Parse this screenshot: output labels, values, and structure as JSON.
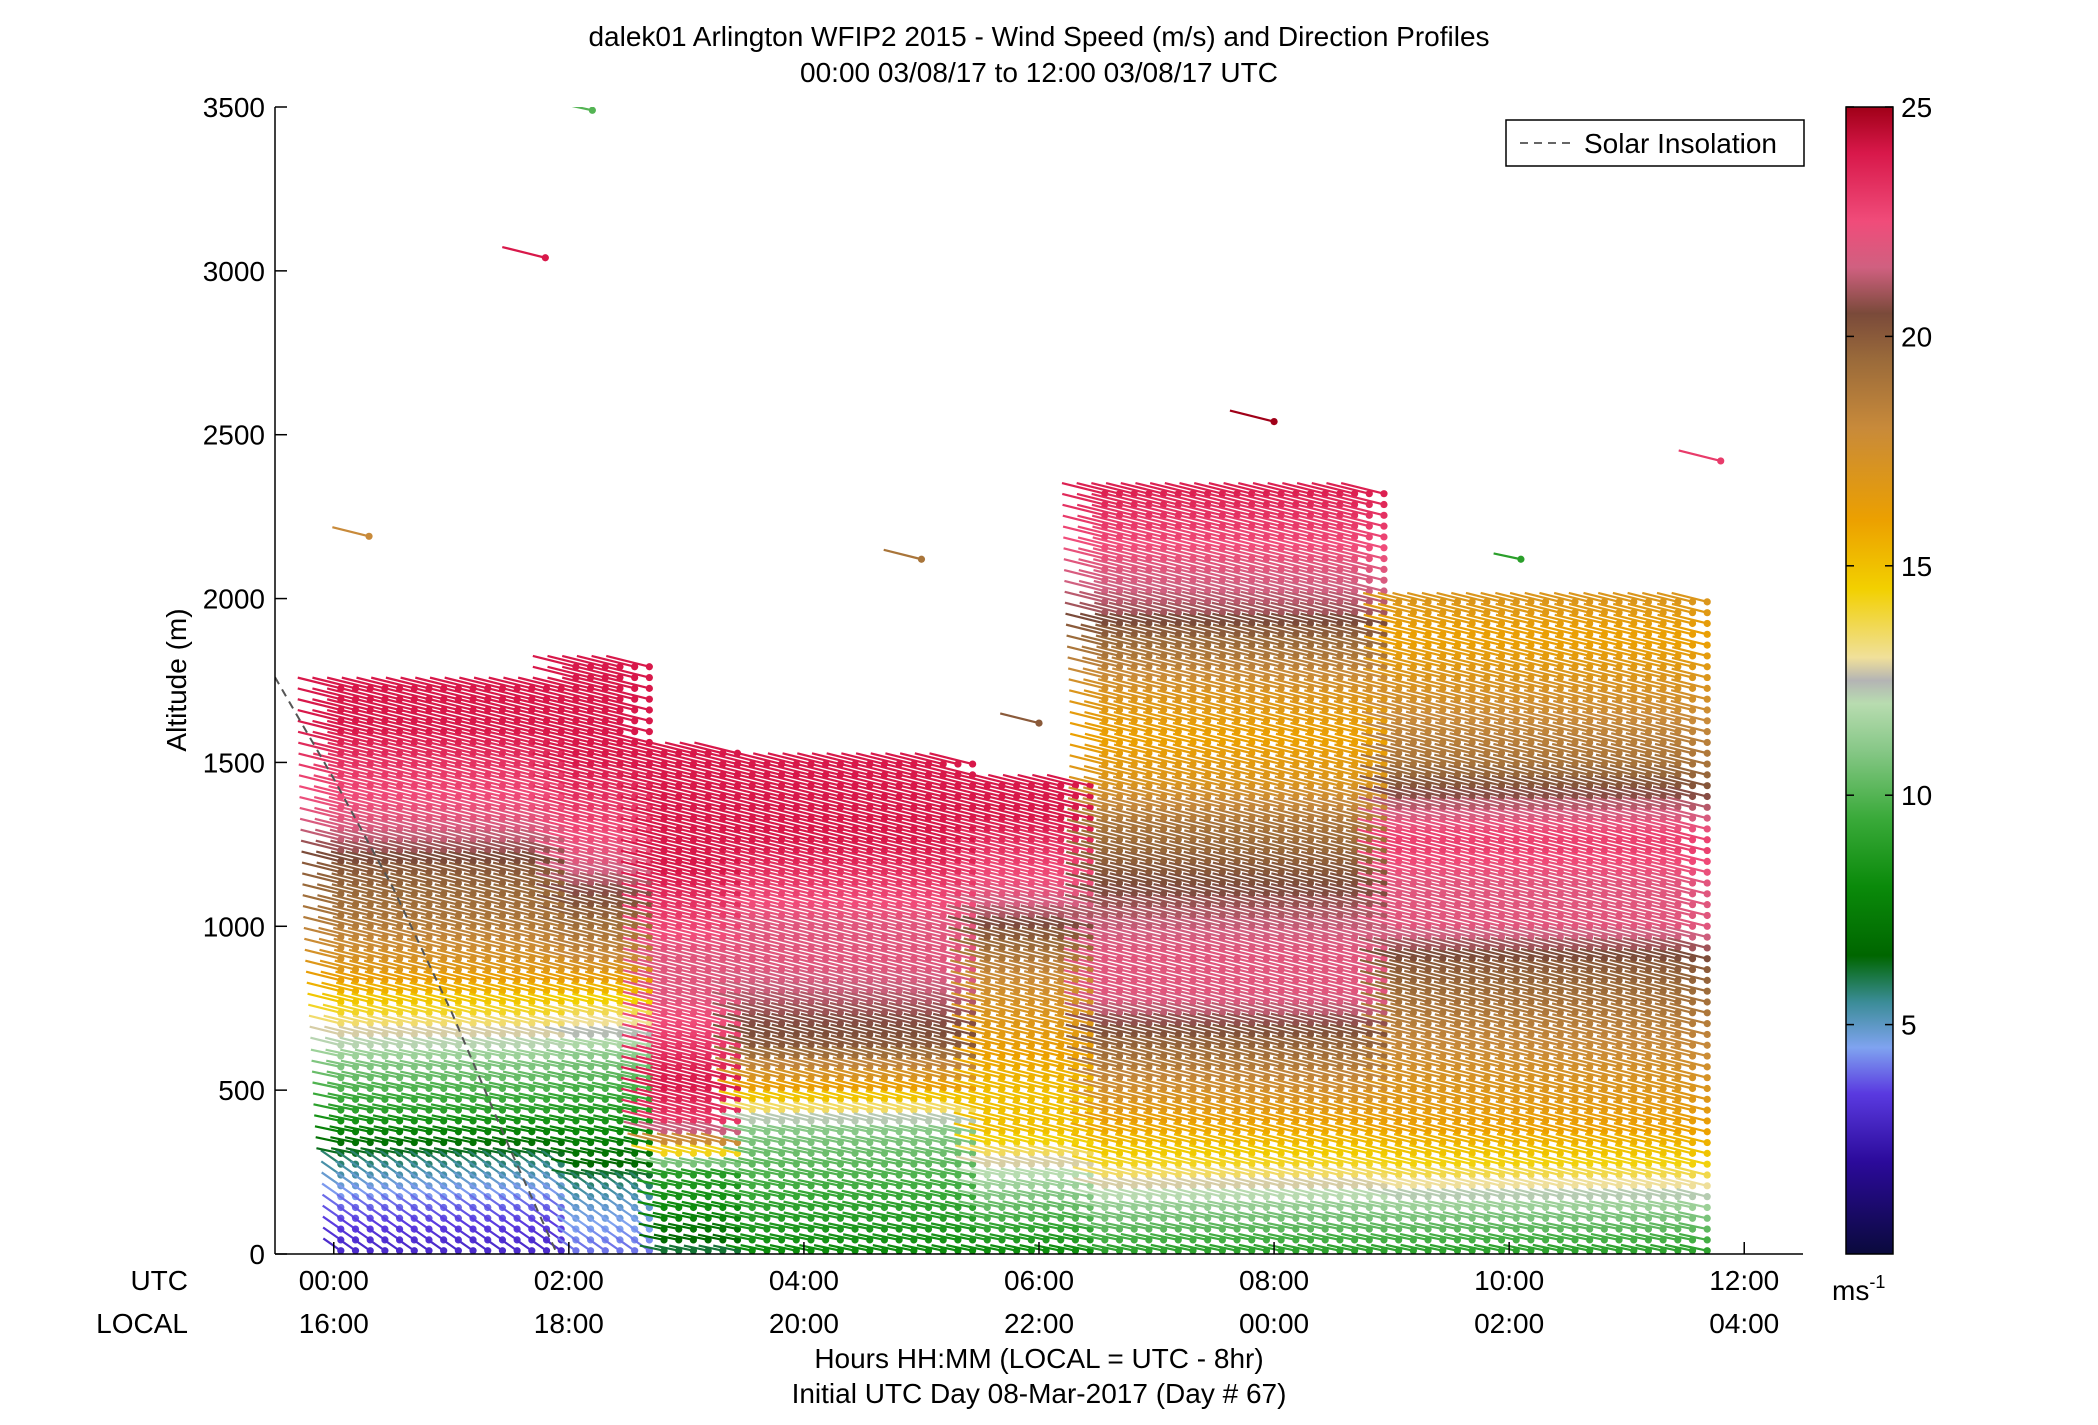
{
  "chart_data": {
    "type": "scatter",
    "title": "dalek01 Arlington WFIP2 2015 - Wind Speed (m/s) and Direction Profiles",
    "subtitle": "00:00 03/08/17 to 12:00 03/08/17  UTC",
    "ylabel": "Altitude (m)",
    "xlabel": "Hours HH:MM  (LOCAL = UTC - 8hr)",
    "xlabel2": "Initial UTC Day 08-Mar-2017 (Day # 67)",
    "utc_row_label": "UTC",
    "local_row_label": "LOCAL",
    "x_range_hours": [
      -0.5,
      12.5
    ],
    "ylim": [
      0,
      3500
    ],
    "y_ticks": [
      "0",
      "500",
      "1000",
      "1500",
      "2000",
      "2500",
      "3000",
      "3500"
    ],
    "x_ticks_utc": [
      "00:00",
      "02:00",
      "04:00",
      "06:00",
      "08:00",
      "10:00",
      "12:00"
    ],
    "x_ticks_local": [
      "16:00",
      "18:00",
      "20:00",
      "22:00",
      "00:00",
      "02:00",
      "04:00"
    ],
    "legend": {
      "label": "Solar Insolation",
      "position": "top-right"
    },
    "colorbar": {
      "ticks": [
        "5",
        "10",
        "15",
        "20",
        "25"
      ],
      "range": [
        0,
        25
      ],
      "unit_label": "ms",
      "unit_exponent": "-1",
      "stops": [
        {
          "v": 0,
          "c": "#0a0a3c"
        },
        {
          "v": 2,
          "c": "#2b0a9a"
        },
        {
          "v": 3.5,
          "c": "#5a3ae0"
        },
        {
          "v": 4.5,
          "c": "#7fa3f0"
        },
        {
          "v": 5.5,
          "c": "#3a8c96"
        },
        {
          "v": 6.5,
          "c": "#006600"
        },
        {
          "v": 8,
          "c": "#0a8a0a"
        },
        {
          "v": 9.5,
          "c": "#3aaa3a"
        },
        {
          "v": 11,
          "c": "#88c888"
        },
        {
          "v": 12,
          "c": "#b8dcb0"
        },
        {
          "v": 12.5,
          "c": "#b4b4b4"
        },
        {
          "v": 13,
          "c": "#f0e09a"
        },
        {
          "v": 14.5,
          "c": "#f2d000"
        },
        {
          "v": 16,
          "c": "#eca000"
        },
        {
          "v": 18,
          "c": "#c88a3a"
        },
        {
          "v": 19.5,
          "c": "#9a6a3a"
        },
        {
          "v": 20.5,
          "c": "#7a4a3a"
        },
        {
          "v": 21.5,
          "c": "#d06080"
        },
        {
          "v": 22.5,
          "c": "#f04c7a"
        },
        {
          "v": 24,
          "c": "#d8184a"
        },
        {
          "v": 25,
          "c": "#a00018"
        }
      ]
    },
    "solar_insolation_line": [
      {
        "hour": -0.5,
        "alt": 1760
      },
      {
        "hour": 0.0,
        "alt": 1450
      },
      {
        "hour": 0.5,
        "alt": 1120
      },
      {
        "hour": 1.0,
        "alt": 740
      },
      {
        "hour": 1.5,
        "alt": 320
      },
      {
        "hour": 1.9,
        "alt": 0
      }
    ],
    "profiles": [
      {
        "start_hour": 0.0,
        "end_hour": 2.0,
        "step_hour": 0.125,
        "top_alt": 1750,
        "speeds": [
          3,
          4,
          6,
          9,
          11,
          14,
          17,
          19,
          20,
          22,
          23,
          24,
          24
        ]
      },
      {
        "start_hour": 2.0,
        "end_hour": 2.75,
        "step_hour": 0.125,
        "top_alt": 1800,
        "speeds": [
          4,
          5,
          7,
          9,
          11,
          14,
          18,
          20,
          22,
          23,
          24,
          24,
          24
        ]
      },
      {
        "start_hour": 2.75,
        "end_hour": 3.5,
        "step_hour": 0.125,
        "top_alt": 1550,
        "speeds": [
          6,
          8,
          9,
          23,
          24,
          23,
          22,
          22,
          23,
          24,
          24,
          24,
          24
        ]
      },
      {
        "start_hour": 3.5,
        "end_hour": 5.5,
        "step_hour": 0.125,
        "top_alt": 1500,
        "speeds": [
          8,
          9,
          10,
          11,
          16,
          20,
          21,
          22,
          22,
          23,
          24,
          24,
          24
        ]
      },
      {
        "start_hour": 5.5,
        "end_hour": 6.5,
        "step_hour": 0.125,
        "top_alt": 1450,
        "speeds": [
          8,
          10,
          12,
          15,
          15,
          16,
          17,
          18,
          20,
          22,
          23,
          24,
          24
        ]
      },
      {
        "start_hour": 6.5,
        "end_hour": 9.0,
        "step_hour": 0.125,
        "top_alt": 2350,
        "speeds": [
          9,
          11,
          14,
          16,
          18,
          20,
          22,
          22,
          21,
          20,
          19,
          17,
          16,
          17,
          19,
          21,
          22,
          23,
          24
        ]
      },
      {
        "start_hour": 9.0,
        "end_hour": 11.75,
        "step_hour": 0.125,
        "top_alt": 2000,
        "speeds": [
          9,
          11,
          14,
          16,
          17,
          18,
          19,
          20,
          22,
          22,
          23,
          21,
          19,
          18,
          17,
          16,
          17
        ]
      }
    ],
    "isolated_barbs": [
      {
        "hour": 0.3,
        "alt": 2190,
        "speed": 18
      },
      {
        "hour": 1.8,
        "alt": 3040,
        "speed": 24
      },
      {
        "hour": 2.2,
        "alt": 3490,
        "speed": 10
      },
      {
        "hour": 5.0,
        "alt": 2120,
        "speed": 19
      },
      {
        "hour": 6.0,
        "alt": 1620,
        "speed": 20
      },
      {
        "hour": 8.0,
        "alt": 2540,
        "speed": 25
      },
      {
        "hour": 10.1,
        "alt": 2120,
        "speed": 9
      },
      {
        "hour": 11.8,
        "alt": 2420,
        "speed": 23
      }
    ]
  }
}
